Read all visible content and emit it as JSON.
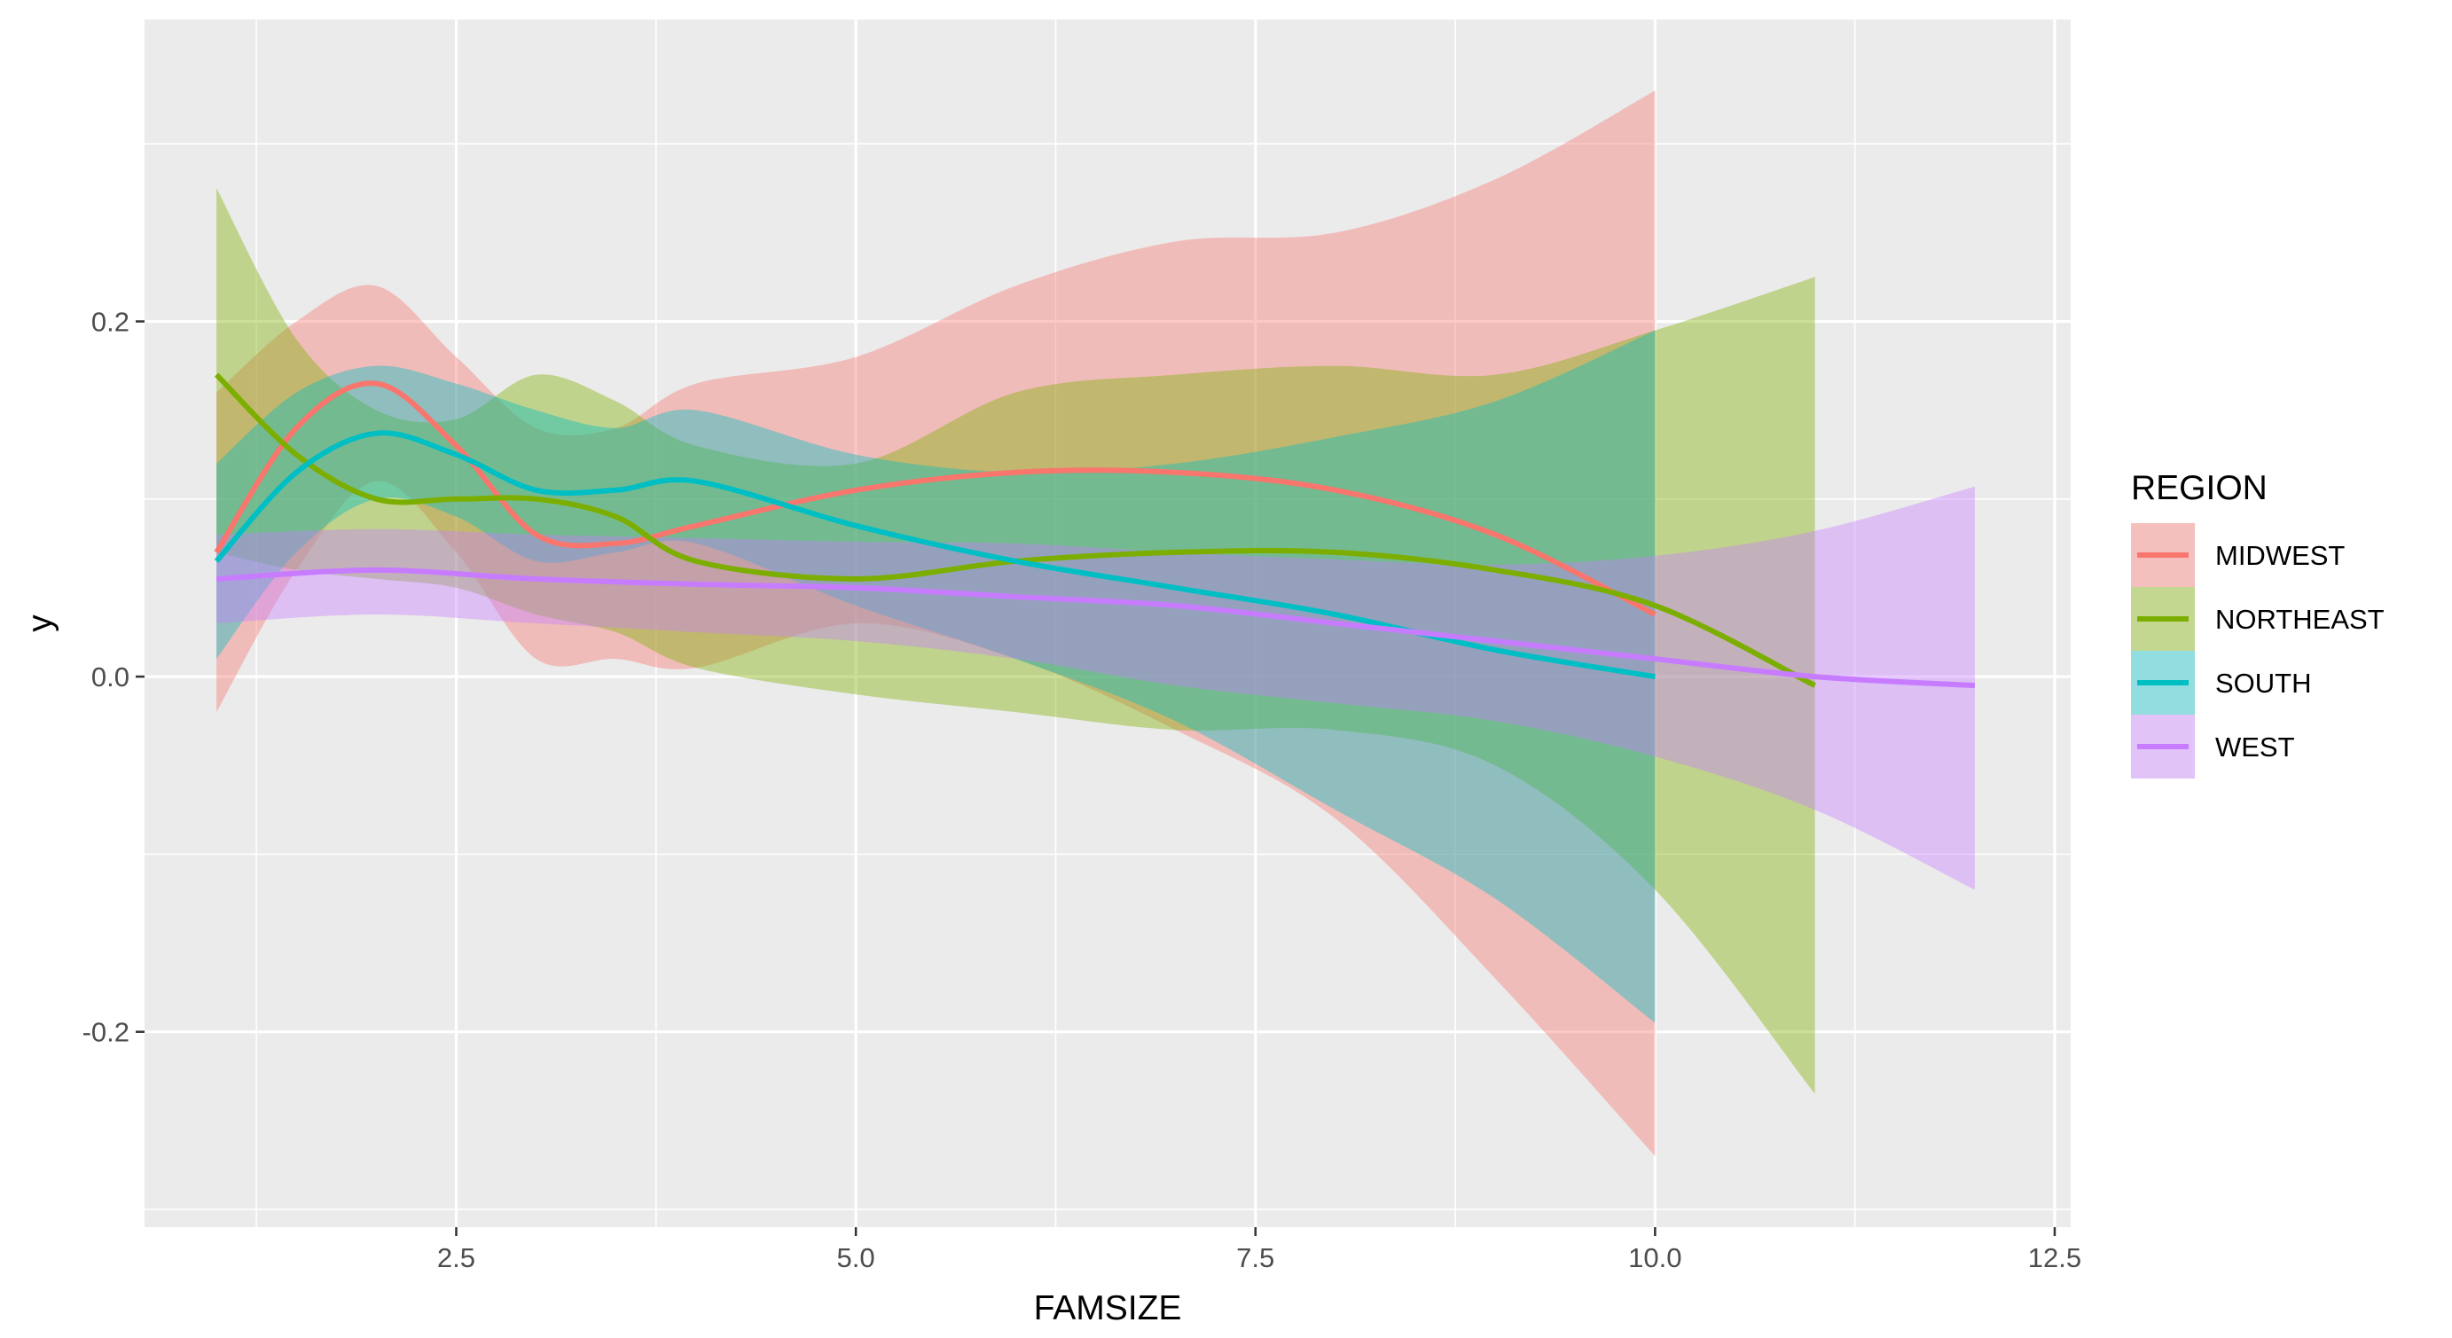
{
  "chart_data": {
    "type": "line",
    "xlabel": "FAMSIZE",
    "ylabel": "y",
    "xlim": [
      0.55,
      12.6
    ],
    "ylim": [
      -0.31,
      0.37
    ],
    "x_ticks": [
      2.5,
      5.0,
      7.5,
      10.0,
      12.5
    ],
    "x_tick_labels": [
      "2.5",
      "5.0",
      "7.5",
      "10.0",
      "12.5"
    ],
    "y_ticks": [
      -0.2,
      0.0,
      0.2
    ],
    "y_tick_labels": [
      "-0.2",
      "0.0",
      "0.2"
    ],
    "grid": true,
    "panel_background": "#ebebeb",
    "legend": {
      "title": "REGION",
      "position": "right"
    },
    "series": [
      {
        "name": "MIDWEST",
        "color": "#F8766D",
        "x": [
          1.0,
          1.5,
          2.0,
          2.5,
          3.0,
          3.5,
          4.0,
          5.0,
          6.0,
          7.0,
          8.0,
          9.0,
          10.0
        ],
        "y": [
          0.07,
          0.14,
          0.165,
          0.13,
          0.08,
          0.075,
          0.085,
          0.105,
          0.115,
          0.115,
          0.105,
          0.08,
          0.035
        ],
        "lower": [
          -0.02,
          0.06,
          0.11,
          0.07,
          0.01,
          0.01,
          0.005,
          0.03,
          0.01,
          -0.03,
          -0.08,
          -0.17,
          -0.27
        ],
        "upper": [
          0.16,
          0.2,
          0.22,
          0.18,
          0.14,
          0.14,
          0.165,
          0.18,
          0.22,
          0.245,
          0.25,
          0.28,
          0.33
        ]
      },
      {
        "name": "NORTHEAST",
        "color": "#7CAE00",
        "x": [
          1.0,
          1.5,
          2.0,
          2.5,
          3.0,
          3.5,
          4.0,
          5.0,
          6.0,
          7.0,
          8.0,
          9.0,
          10.0,
          11.0
        ],
        "y": [
          0.17,
          0.125,
          0.1,
          0.1,
          0.1,
          0.09,
          0.065,
          0.055,
          0.065,
          0.07,
          0.07,
          0.06,
          0.04,
          -0.005
        ],
        "lower": [
          0.07,
          0.06,
          0.055,
          0.05,
          0.035,
          0.025,
          0.005,
          -0.01,
          -0.02,
          -0.03,
          -0.03,
          -0.05,
          -0.12,
          -0.235
        ],
        "upper": [
          0.275,
          0.19,
          0.15,
          0.145,
          0.17,
          0.155,
          0.13,
          0.12,
          0.16,
          0.17,
          0.175,
          0.17,
          0.195,
          0.225
        ]
      },
      {
        "name": "SOUTH",
        "color": "#00BFC4",
        "x": [
          1.0,
          1.5,
          2.0,
          2.5,
          3.0,
          3.5,
          4.0,
          5.0,
          6.0,
          7.0,
          8.0,
          9.0,
          10.0
        ],
        "y": [
          0.065,
          0.115,
          0.137,
          0.125,
          0.105,
          0.105,
          0.11,
          0.085,
          0.065,
          0.05,
          0.035,
          0.015,
          0.0
        ],
        "lower": [
          0.01,
          0.07,
          0.1,
          0.09,
          0.065,
          0.07,
          0.075,
          0.04,
          0.01,
          -0.025,
          -0.075,
          -0.125,
          -0.195
        ],
        "upper": [
          0.12,
          0.16,
          0.175,
          0.165,
          0.15,
          0.14,
          0.15,
          0.125,
          0.115,
          0.12,
          0.135,
          0.155,
          0.195
        ]
      },
      {
        "name": "WEST",
        "color": "#C77CFF",
        "x": [
          1.0,
          2.0,
          3.0,
          4.0,
          5.0,
          6.0,
          7.0,
          8.0,
          9.0,
          10.0,
          11.0,
          12.0
        ],
        "y": [
          0.055,
          0.06,
          0.055,
          0.052,
          0.05,
          0.045,
          0.04,
          0.03,
          0.02,
          0.01,
          0.0,
          -0.005
        ],
        "lower": [
          0.03,
          0.035,
          0.03,
          0.025,
          0.02,
          0.01,
          -0.005,
          -0.015,
          -0.025,
          -0.045,
          -0.075,
          -0.12
        ],
        "upper": [
          0.08,
          0.083,
          0.08,
          0.078,
          0.076,
          0.075,
          0.07,
          0.066,
          0.063,
          0.068,
          0.082,
          0.107
        ]
      }
    ]
  }
}
